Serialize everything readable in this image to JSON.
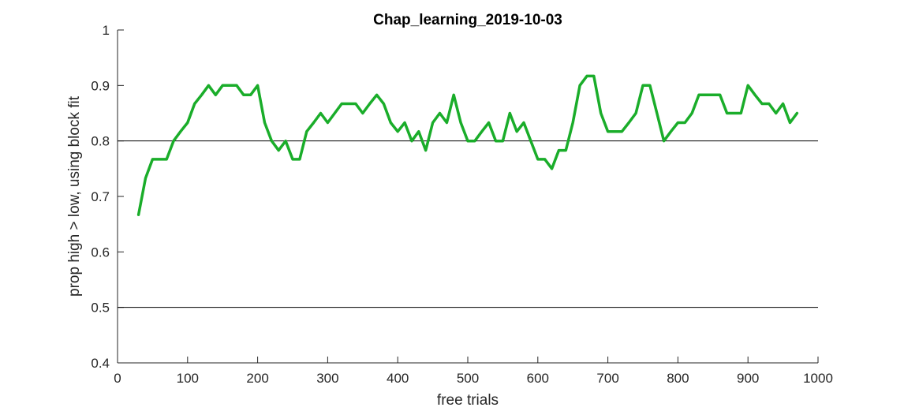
{
  "chart_data": {
    "type": "line",
    "title": "Chap_learning_2019-10-03",
    "xlabel": "free trials",
    "ylabel": "prop high > low, using block fit",
    "xlim": [
      0,
      1000
    ],
    "ylim": [
      0.4,
      1
    ],
    "xticks": [
      0,
      100,
      200,
      300,
      400,
      500,
      600,
      700,
      800,
      900,
      1000
    ],
    "yticks": [
      0.4,
      0.5,
      0.6,
      0.7,
      0.8,
      0.9,
      1
    ],
    "xtick_labels": [
      "0",
      "100",
      "200",
      "300",
      "400",
      "500",
      "600",
      "700",
      "800",
      "900",
      "1000"
    ],
    "ytick_labels": [
      "0.4",
      "0.5",
      "0.6",
      "0.7",
      "0.8",
      "0.9",
      "1"
    ],
    "grid": false,
    "reference_lines": [
      0.8,
      0.5
    ],
    "colors": {
      "series": "#1aad2a",
      "reference": "#000000",
      "axis": "#262626"
    },
    "series": [
      {
        "x": [
          30,
          40,
          50,
          60,
          70,
          80,
          90,
          100,
          110,
          120,
          130,
          140,
          150,
          160,
          170,
          180,
          190,
          200,
          210,
          220,
          230,
          240,
          250,
          260,
          270,
          280,
          290,
          300,
          310,
          320,
          330,
          340,
          350,
          360,
          370,
          380,
          390,
          400,
          410,
          420,
          430,
          440,
          450,
          460,
          470,
          480,
          490,
          500,
          510,
          520,
          530,
          540,
          550,
          560,
          570,
          580,
          590,
          600,
          610,
          620,
          630,
          640,
          650,
          660,
          670,
          680,
          690,
          700,
          710,
          720,
          730,
          740,
          750,
          760,
          770,
          780,
          790,
          800,
          810,
          820,
          830,
          840,
          850,
          860,
          870,
          880,
          890,
          900,
          910,
          920,
          930,
          940,
          950,
          960,
          970
        ],
        "values": [
          0.667,
          0.733,
          0.767,
          0.767,
          0.767,
          0.8,
          0.817,
          0.833,
          0.867,
          0.883,
          0.9,
          0.883,
          0.9,
          0.9,
          0.9,
          0.883,
          0.883,
          0.9,
          0.833,
          0.8,
          0.783,
          0.8,
          0.767,
          0.767,
          0.817,
          0.833,
          0.85,
          0.833,
          0.85,
          0.867,
          0.867,
          0.867,
          0.85,
          0.867,
          0.883,
          0.867,
          0.833,
          0.817,
          0.833,
          0.8,
          0.817,
          0.783,
          0.833,
          0.85,
          0.833,
          0.883,
          0.833,
          0.8,
          0.8,
          0.817,
          0.833,
          0.8,
          0.8,
          0.85,
          0.817,
          0.833,
          0.8,
          0.767,
          0.767,
          0.75,
          0.783,
          0.783,
          0.833,
          0.9,
          0.917,
          0.917,
          0.85,
          0.817,
          0.817,
          0.817,
          0.833,
          0.85,
          0.9,
          0.9,
          0.85,
          0.8,
          0.817,
          0.833,
          0.833,
          0.85,
          0.883,
          0.883,
          0.883,
          0.883,
          0.85,
          0.85,
          0.85,
          0.9,
          0.883,
          0.867,
          0.867,
          0.85,
          0.867,
          0.833,
          0.85
        ]
      }
    ]
  }
}
